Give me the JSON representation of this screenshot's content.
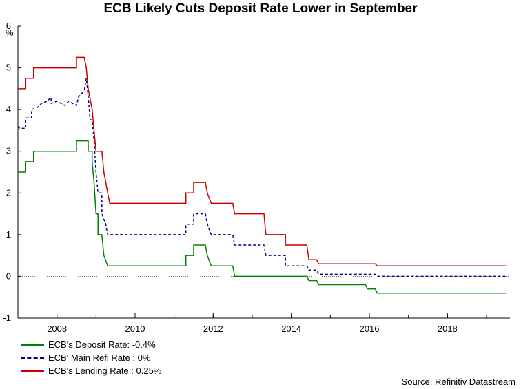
{
  "chart_data": {
    "type": "line",
    "title": "ECB Likely Cuts Deposit Rate Lower in September",
    "y_unit": "%",
    "xlim": [
      2007.0,
      2019.6
    ],
    "ylim": [
      -1,
      6
    ],
    "yticks": [
      -1,
      0,
      1,
      2,
      3,
      4,
      5,
      6
    ],
    "xticks": [
      2008,
      2010,
      2012,
      2014,
      2016,
      2018
    ],
    "grid": false,
    "legend_position": "bottom-left",
    "source": "Source: Refinitiv Datastream",
    "series": [
      {
        "name": "ECB's Deposit Rate: -0.4%",
        "color": "#008000",
        "style": "solid",
        "points": [
          [
            2007.0,
            2.5
          ],
          [
            2007.1,
            2.5
          ],
          [
            2007.2,
            2.5
          ],
          [
            2007.2,
            2.75
          ],
          [
            2007.4,
            2.75
          ],
          [
            2007.4,
            3.0
          ],
          [
            2008.5,
            3.0
          ],
          [
            2008.5,
            3.25
          ],
          [
            2008.8,
            3.25
          ],
          [
            2008.8,
            3.0
          ],
          [
            2008.9,
            3.0
          ],
          [
            2008.9,
            2.75
          ],
          [
            2008.95,
            2.25
          ],
          [
            2009.0,
            1.5
          ],
          [
            2009.05,
            1.5
          ],
          [
            2009.05,
            1.0
          ],
          [
            2009.15,
            1.0
          ],
          [
            2009.2,
            0.5
          ],
          [
            2009.3,
            0.25
          ],
          [
            2011.3,
            0.25
          ],
          [
            2011.3,
            0.5
          ],
          [
            2011.5,
            0.5
          ],
          [
            2011.5,
            0.75
          ],
          [
            2011.8,
            0.75
          ],
          [
            2011.85,
            0.5
          ],
          [
            2011.95,
            0.25
          ],
          [
            2012.5,
            0.25
          ],
          [
            2012.55,
            0.0
          ],
          [
            2014.4,
            0.0
          ],
          [
            2014.45,
            -0.1
          ],
          [
            2014.65,
            -0.1
          ],
          [
            2014.7,
            -0.2
          ],
          [
            2015.9,
            -0.2
          ],
          [
            2015.95,
            -0.3
          ],
          [
            2016.15,
            -0.3
          ],
          [
            2016.2,
            -0.4
          ],
          [
            2019.5,
            -0.4
          ]
        ]
      },
      {
        "name": "ECB' Main Refi Rate : 0%",
        "color": "#000080",
        "style": "dashed",
        "points": [
          [
            2007.0,
            3.6
          ],
          [
            2007.05,
            3.55
          ],
          [
            2007.2,
            3.55
          ],
          [
            2007.2,
            3.8
          ],
          [
            2007.35,
            3.8
          ],
          [
            2007.35,
            4.0
          ],
          [
            2007.5,
            4.05
          ],
          [
            2007.6,
            4.15
          ],
          [
            2007.75,
            4.2
          ],
          [
            2007.85,
            4.3
          ],
          [
            2007.85,
            4.15
          ],
          [
            2008.0,
            4.2
          ],
          [
            2008.1,
            4.15
          ],
          [
            2008.2,
            4.1
          ],
          [
            2008.3,
            4.2
          ],
          [
            2008.4,
            4.15
          ],
          [
            2008.5,
            4.1
          ],
          [
            2008.55,
            4.3
          ],
          [
            2008.65,
            4.4
          ],
          [
            2008.7,
            4.45
          ],
          [
            2008.75,
            4.75
          ],
          [
            2008.8,
            4.3
          ],
          [
            2008.85,
            3.75
          ],
          [
            2008.9,
            3.75
          ],
          [
            2008.95,
            3.25
          ],
          [
            2009.0,
            2.5
          ],
          [
            2009.05,
            2.0
          ],
          [
            2009.15,
            2.0
          ],
          [
            2009.15,
            1.5
          ],
          [
            2009.25,
            1.25
          ],
          [
            2009.3,
            1.0
          ],
          [
            2011.3,
            1.0
          ],
          [
            2011.3,
            1.25
          ],
          [
            2011.5,
            1.25
          ],
          [
            2011.5,
            1.5
          ],
          [
            2011.8,
            1.5
          ],
          [
            2011.85,
            1.25
          ],
          [
            2011.95,
            1.0
          ],
          [
            2012.5,
            1.0
          ],
          [
            2012.55,
            0.75
          ],
          [
            2013.3,
            0.75
          ],
          [
            2013.35,
            0.5
          ],
          [
            2013.85,
            0.5
          ],
          [
            2013.85,
            0.25
          ],
          [
            2014.4,
            0.25
          ],
          [
            2014.45,
            0.15
          ],
          [
            2014.65,
            0.15
          ],
          [
            2014.7,
            0.05
          ],
          [
            2016.15,
            0.05
          ],
          [
            2016.2,
            0.0
          ],
          [
            2019.5,
            0.0
          ]
        ]
      },
      {
        "name": "ECB's Lending Rate : 0.25%",
        "color": "#cc0000",
        "style": "solid",
        "points": [
          [
            2007.0,
            4.5
          ],
          [
            2007.1,
            4.5
          ],
          [
            2007.2,
            4.5
          ],
          [
            2007.2,
            4.75
          ],
          [
            2007.4,
            4.75
          ],
          [
            2007.4,
            5.0
          ],
          [
            2008.5,
            5.0
          ],
          [
            2008.5,
            5.25
          ],
          [
            2008.7,
            5.25
          ],
          [
            2008.75,
            5.0
          ],
          [
            2008.8,
            4.5
          ],
          [
            2008.9,
            4.0
          ],
          [
            2009.0,
            3.0
          ],
          [
            2009.15,
            3.0
          ],
          [
            2009.2,
            2.5
          ],
          [
            2009.3,
            2.0
          ],
          [
            2009.35,
            1.75
          ],
          [
            2011.3,
            1.75
          ],
          [
            2011.3,
            2.0
          ],
          [
            2011.5,
            2.0
          ],
          [
            2011.5,
            2.25
          ],
          [
            2011.8,
            2.25
          ],
          [
            2011.85,
            2.0
          ],
          [
            2011.95,
            1.75
          ],
          [
            2012.5,
            1.75
          ],
          [
            2012.55,
            1.5
          ],
          [
            2013.3,
            1.5
          ],
          [
            2013.35,
            1.0
          ],
          [
            2013.85,
            1.0
          ],
          [
            2013.85,
            0.75
          ],
          [
            2014.4,
            0.75
          ],
          [
            2014.45,
            0.4
          ],
          [
            2014.65,
            0.4
          ],
          [
            2014.7,
            0.3
          ],
          [
            2016.15,
            0.3
          ],
          [
            2016.2,
            0.25
          ],
          [
            2019.5,
            0.25
          ]
        ]
      }
    ]
  }
}
